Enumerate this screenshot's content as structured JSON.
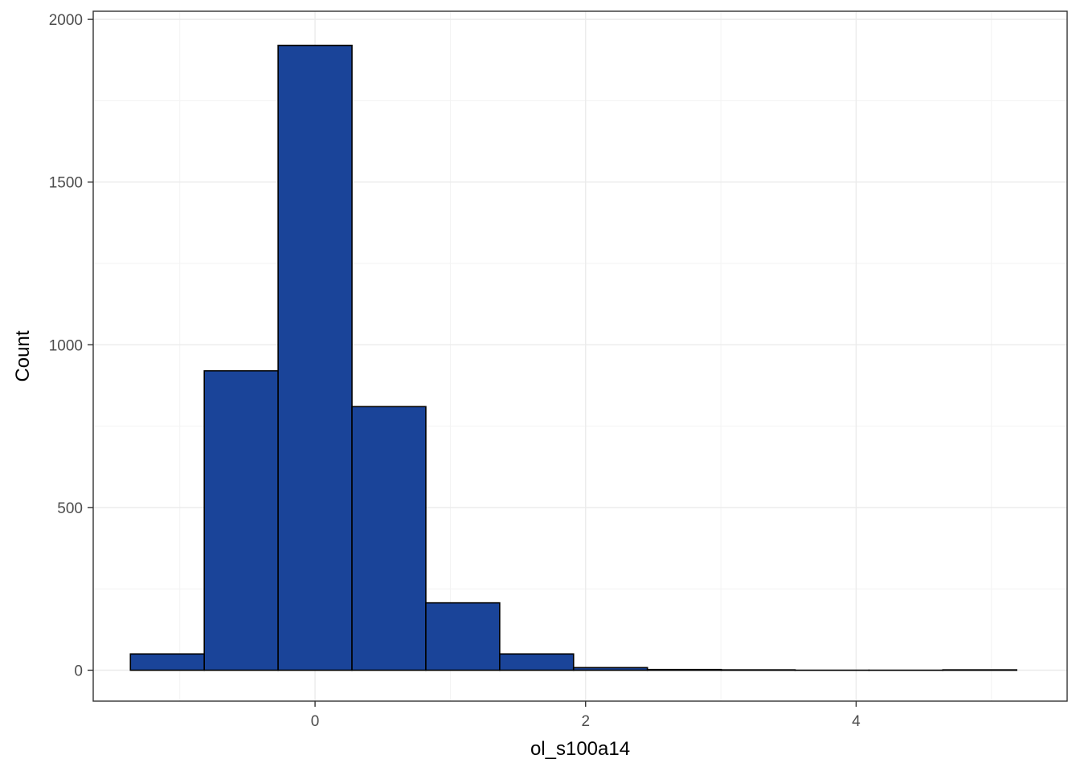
{
  "chart_data": {
    "type": "bar",
    "subtype": "histogram",
    "title": "",
    "xlabel": "ol_s100a14",
    "ylabel": "Count",
    "xlim": [
      -1.64,
      5.56
    ],
    "ylim": [
      -95,
      2025
    ],
    "x_ticks": [
      0,
      2,
      4
    ],
    "x_tick_labels": [
      "0",
      "2",
      "4"
    ],
    "y_ticks": [
      0,
      500,
      1000,
      1500,
      2000
    ],
    "y_tick_labels": [
      "0",
      "500",
      "1000",
      "1500",
      "2000"
    ],
    "grid": true,
    "bin_edges": [
      -1.365,
      -0.819,
      -0.273,
      0.273,
      0.819,
      1.365,
      1.911,
      2.457,
      3.003,
      3.549,
      4.095,
      4.641,
      5.187
    ],
    "counts": [
      50,
      920,
      1920,
      810,
      207,
      50,
      8,
      2,
      1,
      0,
      0,
      1
    ],
    "colors": {
      "bar_fill": "#1a4499",
      "bar_stroke": "#000000",
      "grid_major": "#ebebeb",
      "grid_minor": "#f3f3f3",
      "panel_border": "#333333"
    }
  }
}
